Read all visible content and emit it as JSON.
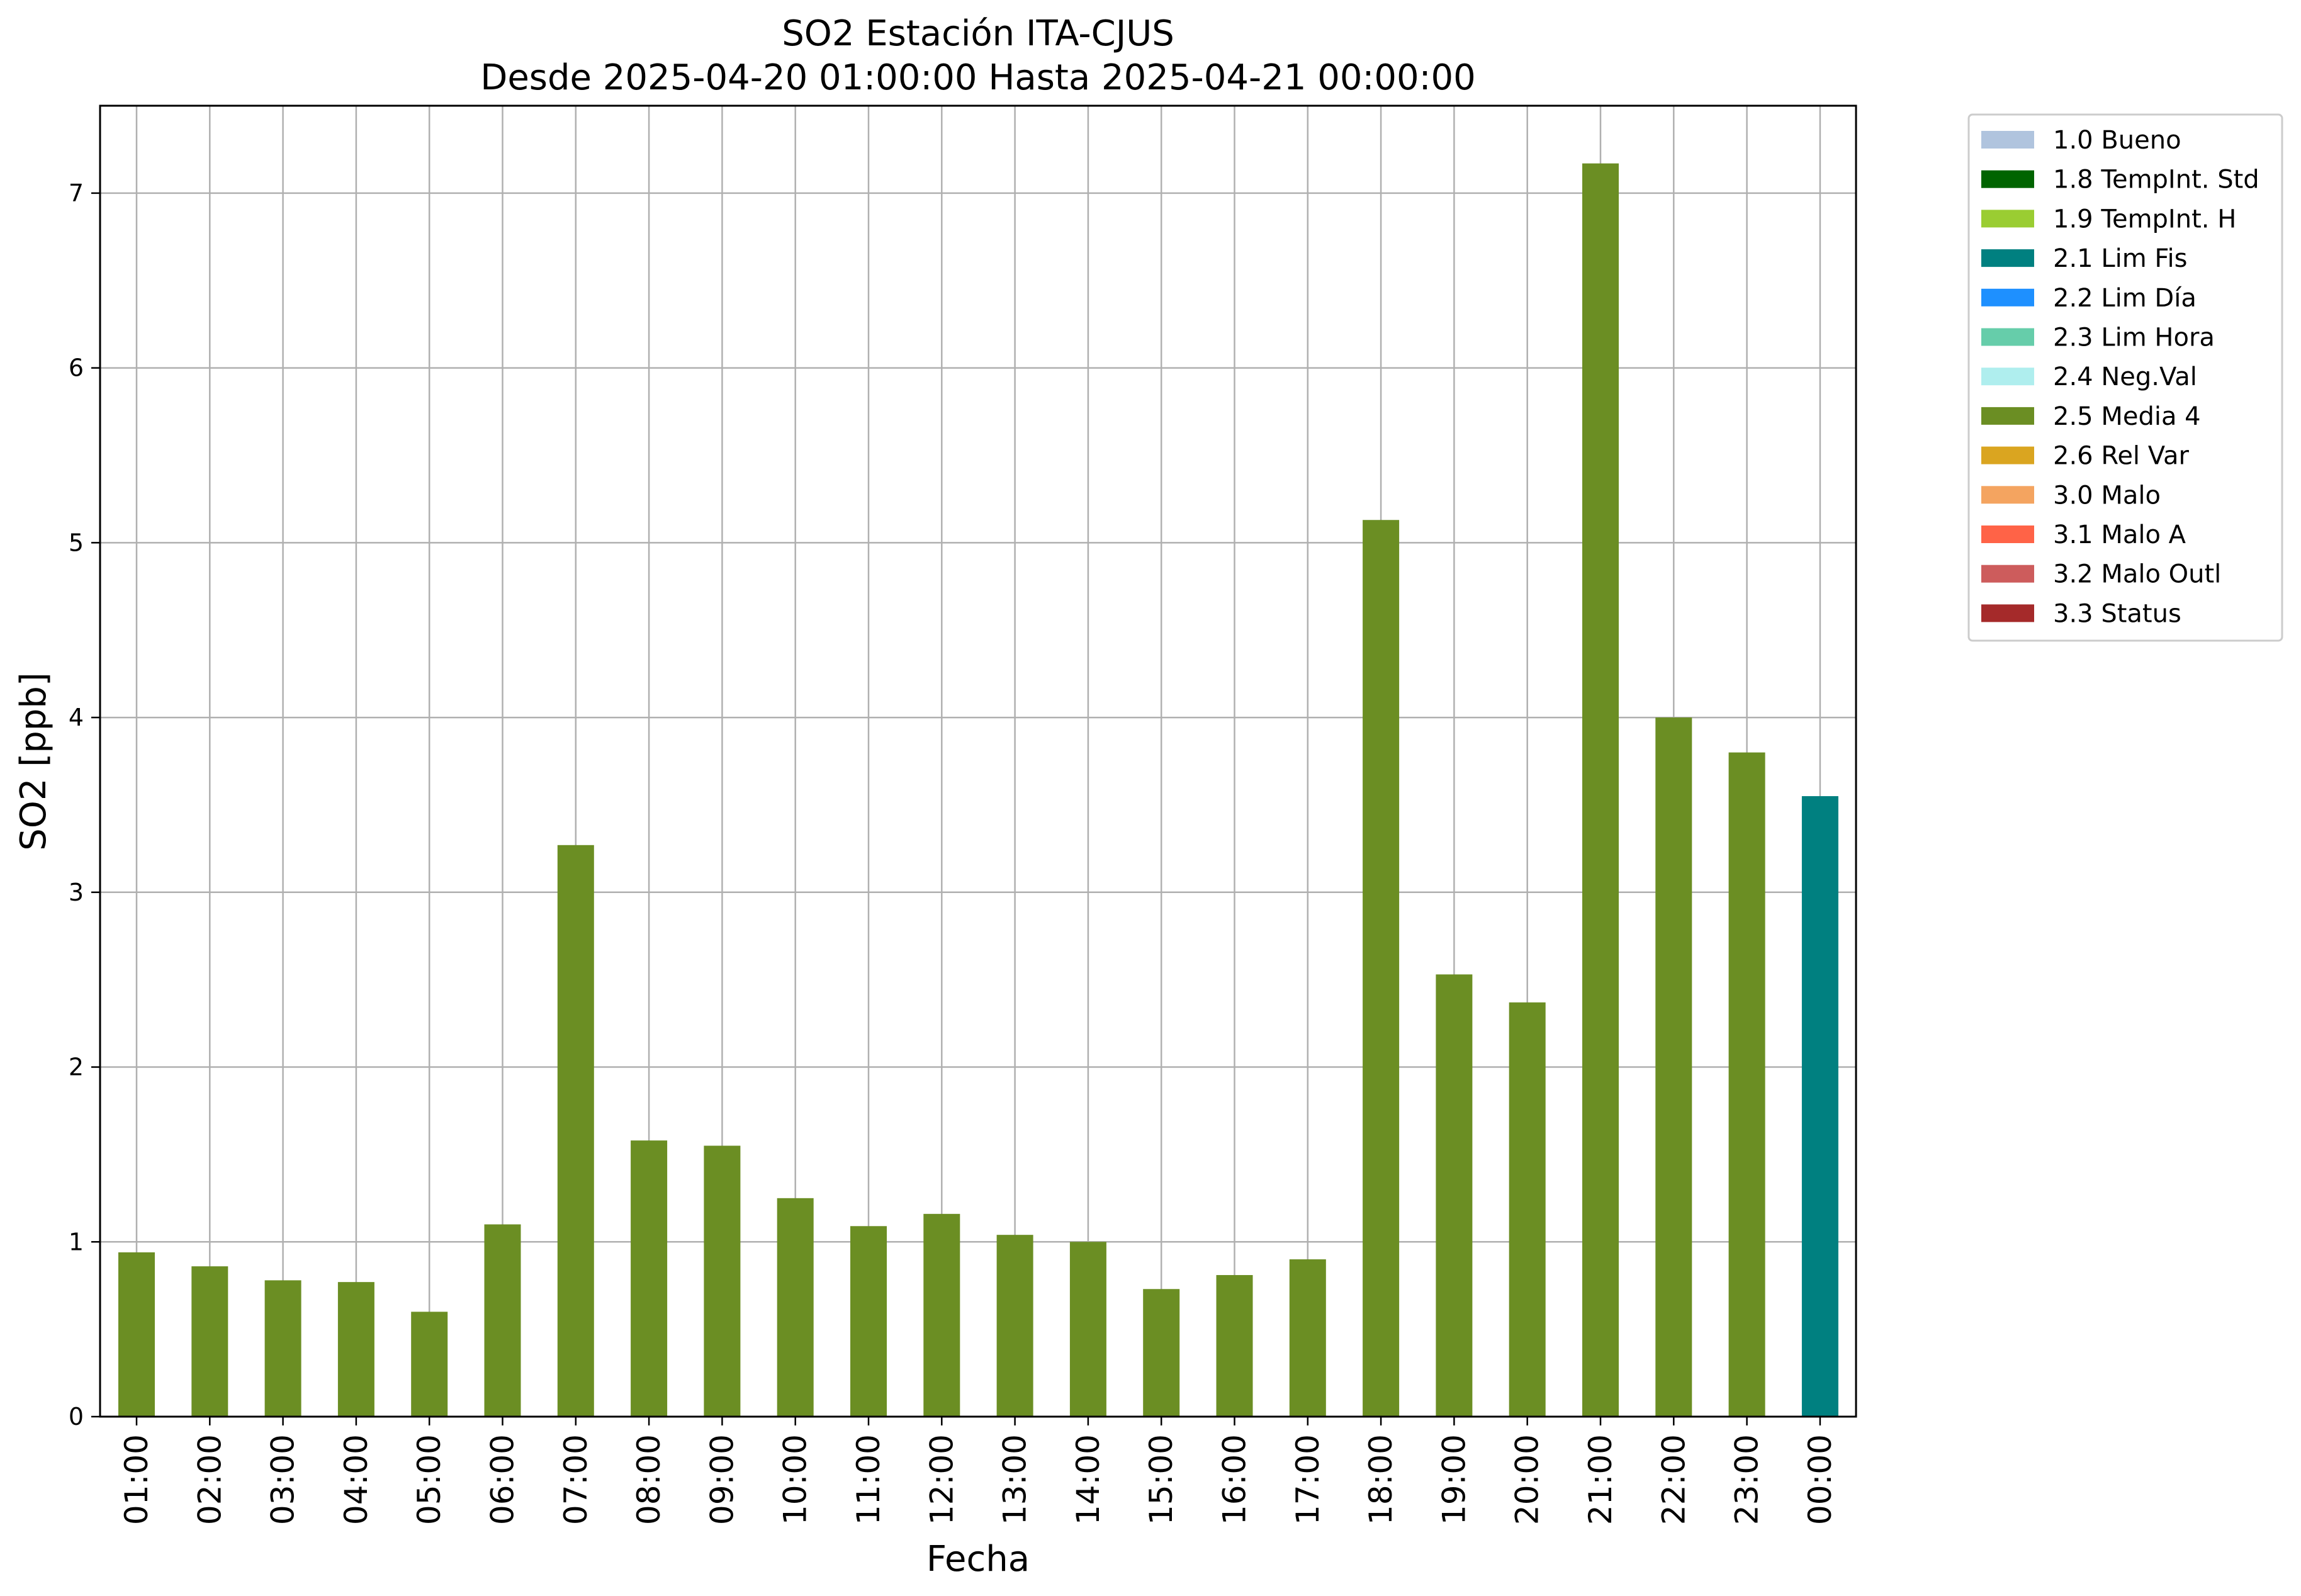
{
  "chart_data": {
    "type": "bar",
    "title_line1": "SO2 Estación ITA-CJUS",
    "title_line2": "Desde 2025-04-20 01:00:00 Hasta 2025-04-21 00:00:00",
    "xlabel": "Fecha",
    "ylabel": "SO2 [ppb]",
    "ylim": [
      0,
      7.5
    ],
    "yticks": [
      "0",
      "1",
      "2",
      "3",
      "4",
      "5",
      "6",
      "7"
    ],
    "grid": true,
    "legend_position": "outside-right",
    "categories": [
      "01:00",
      "02:00",
      "03:00",
      "04:00",
      "05:00",
      "06:00",
      "07:00",
      "08:00",
      "09:00",
      "10:00",
      "11:00",
      "12:00",
      "13:00",
      "14:00",
      "15:00",
      "16:00",
      "17:00",
      "18:00",
      "19:00",
      "20:00",
      "21:00",
      "22:00",
      "23:00",
      "00:00"
    ],
    "values": [
      0.94,
      0.86,
      0.78,
      0.77,
      0.6,
      1.1,
      3.27,
      1.58,
      1.55,
      1.25,
      1.09,
      1.16,
      1.04,
      1.0,
      0.73,
      0.81,
      0.9,
      5.13,
      2.53,
      2.37,
      7.17,
      4.0,
      3.8,
      3.55
    ],
    "value_flags": [
      "2.5 Media 4",
      "2.5 Media 4",
      "2.5 Media 4",
      "2.5 Media 4",
      "2.5 Media 4",
      "2.5 Media 4",
      "2.5 Media 4",
      "2.5 Media 4",
      "2.5 Media 4",
      "2.5 Media 4",
      "2.5 Media 4",
      "2.5 Media 4",
      "2.5 Media 4",
      "2.5 Media 4",
      "2.5 Media 4",
      "2.5 Media 4",
      "2.5 Media 4",
      "2.5 Media 4",
      "2.5 Media 4",
      "2.5 Media 4",
      "2.5 Media 4",
      "2.5 Media 4",
      "2.5 Media 4",
      "2.1 Lim Fis"
    ],
    "legend": [
      {
        "label": "1.0 Bueno",
        "color": "#b0c4de"
      },
      {
        "label": "1.8 TempInt. Std",
        "color": "#006400"
      },
      {
        "label": "1.9 TempInt. H",
        "color": "#9acd32"
      },
      {
        "label": "2.1 Lim Fis",
        "color": "#008080"
      },
      {
        "label": "2.2 Lim Día",
        "color": "#1e90ff"
      },
      {
        "label": "2.3 Lim Hora",
        "color": "#66cdaa"
      },
      {
        "label": "2.4 Neg.Val",
        "color": "#afeeee"
      },
      {
        "label": "2.5 Media 4",
        "color": "#6b8e23"
      },
      {
        "label": "2.6 Rel Var",
        "color": "#daa520"
      },
      {
        "label": "3.0 Malo",
        "color": "#f4a460"
      },
      {
        "label": "3.1 Malo A",
        "color": "#ff6347"
      },
      {
        "label": "3.2 Malo Outl",
        "color": "#cd5c5c"
      },
      {
        "label": "3.3 Status",
        "color": "#a52a2a"
      }
    ]
  }
}
